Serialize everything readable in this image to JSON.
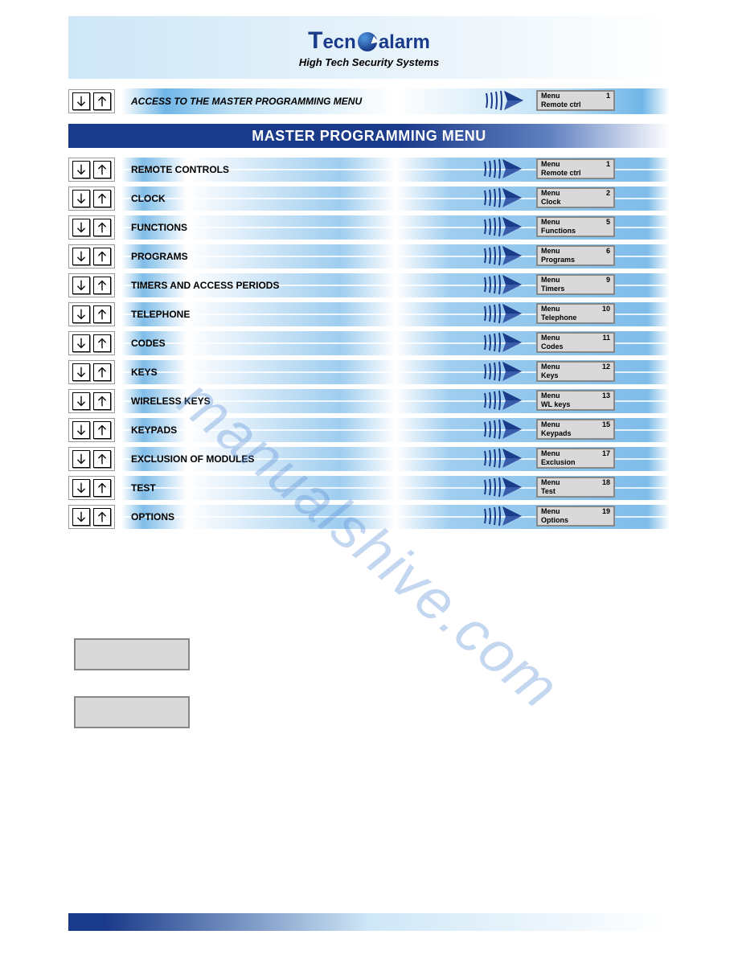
{
  "brand": {
    "prefix": "T",
    "mid": "ecn",
    "suffix": "alarm",
    "tagline": "High Tech Security Systems"
  },
  "access": {
    "label": "ACCESS TO THE MASTER PROGRAMMING MENU",
    "menu_line1": "Menu",
    "menu_num": "1",
    "menu_line2": "Remote ctrl"
  },
  "title": "MASTER PROGRAMMING MENU",
  "items": [
    {
      "label": "REMOTE CONTROLS",
      "menu": "Menu",
      "num": "1",
      "sub": "Remote ctrl"
    },
    {
      "label": "CLOCK",
      "menu": "Menu",
      "num": "2",
      "sub": "Clock"
    },
    {
      "label": "FUNCTIONS",
      "menu": "Menu",
      "num": "5",
      "sub": "Functions"
    },
    {
      "label": "PROGRAMS",
      "menu": "Menu",
      "num": "6",
      "sub": "Programs"
    },
    {
      "label": "TIMERS AND ACCESS PERIODS",
      "menu": "Menu",
      "num": "9",
      "sub": "Timers"
    },
    {
      "label": "TELEPHONE",
      "menu": "Menu",
      "num": "10",
      "sub": "Telephone"
    },
    {
      "label": "CODES",
      "menu": "Menu",
      "num": "11",
      "sub": "Codes"
    },
    {
      "label": "KEYS",
      "menu": "Menu",
      "num": "12",
      "sub": "Keys"
    },
    {
      "label": "WIRELESS KEYS",
      "menu": "Menu",
      "num": "13",
      "sub": "WL keys"
    },
    {
      "label": "KEYPADS",
      "menu": "Menu",
      "num": "15",
      "sub": "Keypads"
    },
    {
      "label": "EXCLUSION OF MODULES",
      "menu": "Menu",
      "num": "17",
      "sub": "Exclusion"
    },
    {
      "label": "TEST",
      "menu": "Menu",
      "num": "18",
      "sub": "Test"
    },
    {
      "label": "OPTIONS",
      "menu": "Menu",
      "num": "19",
      "sub": "Options"
    }
  ],
  "watermark": "manualshive.com",
  "colors": {
    "brand_blue": "#1a3a8a",
    "bar_blue": "#7fbde8",
    "box_gray": "#d9d9d9"
  }
}
